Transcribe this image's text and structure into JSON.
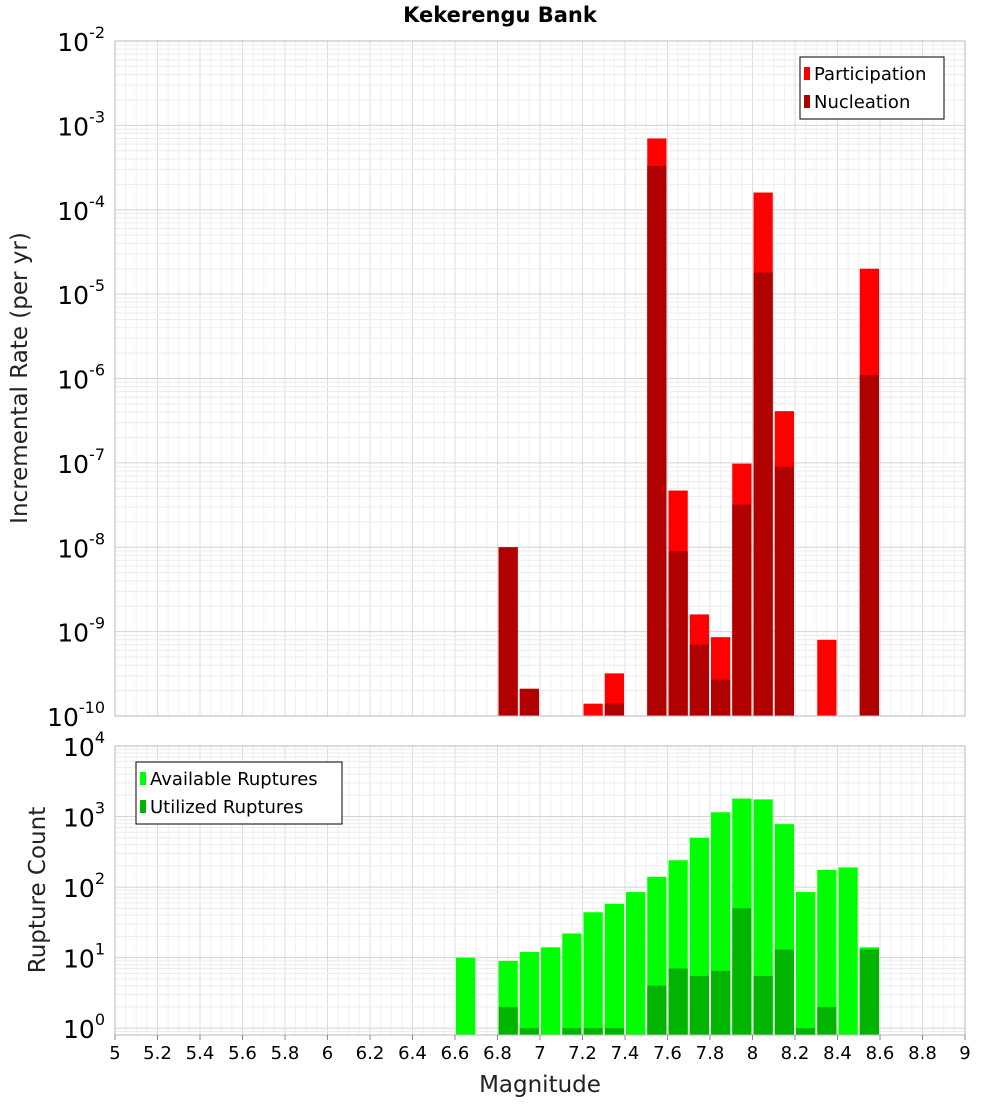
{
  "chart_data": [
    {
      "type": "bar",
      "title": "Kekerengu Bank",
      "xlabel": "",
      "ylabel": "Incremental Rate (per yr)",
      "yscale": "log",
      "ylim": [
        1e-10,
        0.01
      ],
      "xlim": [
        5,
        9
      ],
      "bin_width": 0.1,
      "grid": true,
      "legend_position": "top-right",
      "y_tick_labels": [
        {
          "base": "10",
          "exp": "-10",
          "value": 1e-10
        },
        {
          "base": "10",
          "exp": "-9",
          "value": 1e-09
        },
        {
          "base": "10",
          "exp": "-8",
          "value": 1e-08
        },
        {
          "base": "10",
          "exp": "-7",
          "value": 1e-07
        },
        {
          "base": "10",
          "exp": "-6",
          "value": 1e-06
        },
        {
          "base": "10",
          "exp": "-5",
          "value": 1e-05
        },
        {
          "base": "10",
          "exp": "-4",
          "value": 0.0001
        },
        {
          "base": "10",
          "exp": "-3",
          "value": 0.001
        },
        {
          "base": "10",
          "exp": "-2",
          "value": 0.01
        }
      ],
      "series": [
        {
          "name": "Participation",
          "color": "#ff0000",
          "points": [
            {
              "x": 6.85,
              "y": 1e-08
            },
            {
              "x": 6.95,
              "y": 2.1e-10
            },
            {
              "x": 7.25,
              "y": 1.4e-10
            },
            {
              "x": 7.35,
              "y": 3.2e-10
            },
            {
              "x": 7.55,
              "y": 0.0007
            },
            {
              "x": 7.65,
              "y": 4.7e-08
            },
            {
              "x": 7.75,
              "y": 1.6e-09
            },
            {
              "x": 7.85,
              "y": 8.6e-10
            },
            {
              "x": 7.95,
              "y": 9.8e-08
            },
            {
              "x": 8.05,
              "y": 0.00016
            },
            {
              "x": 8.15,
              "y": 4.1e-07
            },
            {
              "x": 8.35,
              "y": 8e-10
            },
            {
              "x": 8.55,
              "y": 2e-05
            }
          ]
        },
        {
          "name": "Nucleation",
          "color": "#b00000",
          "points": [
            {
              "x": 6.85,
              "y": 1e-08
            },
            {
              "x": 6.95,
              "y": 2.1e-10
            },
            {
              "x": 7.35,
              "y": 1.4e-10
            },
            {
              "x": 7.55,
              "y": 0.00033
            },
            {
              "x": 7.65,
              "y": 9e-09
            },
            {
              "x": 7.75,
              "y": 7e-10
            },
            {
              "x": 7.85,
              "y": 2.7e-10
            },
            {
              "x": 7.95,
              "y": 3.2e-08
            },
            {
              "x": 8.05,
              "y": 1.8e-05
            },
            {
              "x": 8.15,
              "y": 9e-08
            },
            {
              "x": 8.55,
              "y": 1.1e-06
            }
          ]
        }
      ]
    },
    {
      "type": "bar",
      "title": "",
      "xlabel": "Magnitude",
      "ylabel": "Rupture Count",
      "yscale": "log",
      "ylim": [
        0.8,
        10000
      ],
      "xlim": [
        5,
        9
      ],
      "bin_width": 0.1,
      "grid": true,
      "legend_position": "top-left",
      "x_tick_labels": [
        "5",
        "5.2",
        "5.4",
        "5.6",
        "5.8",
        "6",
        "6.2",
        "6.4",
        "6.6",
        "6.8",
        "7",
        "7.2",
        "7.4",
        "7.6",
        "7.8",
        "8",
        "8.2",
        "8.4",
        "8.6",
        "8.8",
        "9"
      ],
      "y_tick_labels": [
        {
          "base": "10",
          "exp": "0",
          "value": 1
        },
        {
          "base": "10",
          "exp": "1",
          "value": 10
        },
        {
          "base": "10",
          "exp": "2",
          "value": 100
        },
        {
          "base": "10",
          "exp": "3",
          "value": 1000
        },
        {
          "base": "10",
          "exp": "4",
          "value": 10000
        }
      ],
      "series": [
        {
          "name": "Available Ruptures",
          "color": "#00ff00",
          "points": [
            {
              "x": 6.65,
              "y": 10
            },
            {
              "x": 6.85,
              "y": 9
            },
            {
              "x": 6.95,
              "y": 12
            },
            {
              "x": 7.05,
              "y": 14
            },
            {
              "x": 7.15,
              "y": 22
            },
            {
              "x": 7.25,
              "y": 44
            },
            {
              "x": 7.35,
              "y": 58
            },
            {
              "x": 7.45,
              "y": 85
            },
            {
              "x": 7.55,
              "y": 140
            },
            {
              "x": 7.65,
              "y": 240
            },
            {
              "x": 7.75,
              "y": 500
            },
            {
              "x": 7.85,
              "y": 1150
            },
            {
              "x": 7.95,
              "y": 1800
            },
            {
              "x": 8.05,
              "y": 1750
            },
            {
              "x": 8.15,
              "y": 780
            },
            {
              "x": 8.25,
              "y": 85
            },
            {
              "x": 8.35,
              "y": 175
            },
            {
              "x": 8.45,
              "y": 190
            },
            {
              "x": 8.55,
              "y": 14
            }
          ]
        },
        {
          "name": "Utilized Ruptures",
          "color": "#00b400",
          "points": [
            {
              "x": 6.85,
              "y": 2
            },
            {
              "x": 6.95,
              "y": 1
            },
            {
              "x": 7.15,
              "y": 1
            },
            {
              "x": 7.25,
              "y": 1
            },
            {
              "x": 7.35,
              "y": 1
            },
            {
              "x": 7.55,
              "y": 4
            },
            {
              "x": 7.65,
              "y": 7
            },
            {
              "x": 7.75,
              "y": 5.5
            },
            {
              "x": 7.85,
              "y": 6.5
            },
            {
              "x": 7.95,
              "y": 50
            },
            {
              "x": 8.05,
              "y": 5.5
            },
            {
              "x": 8.15,
              "y": 13
            },
            {
              "x": 8.25,
              "y": 1
            },
            {
              "x": 8.35,
              "y": 2
            },
            {
              "x": 8.55,
              "y": 13
            }
          ]
        }
      ]
    }
  ]
}
